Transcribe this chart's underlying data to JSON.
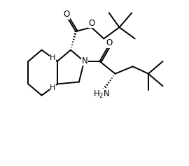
{
  "bg_color": "#ffffff",
  "line_color": "#000000",
  "line_width": 1.4,
  "font_size": 8.5,
  "figsize": [
    2.7,
    2.38
  ],
  "dpi": 100,
  "xlim": [
    0.0,
    7.5
  ],
  "ylim": [
    0.5,
    8.5
  ]
}
